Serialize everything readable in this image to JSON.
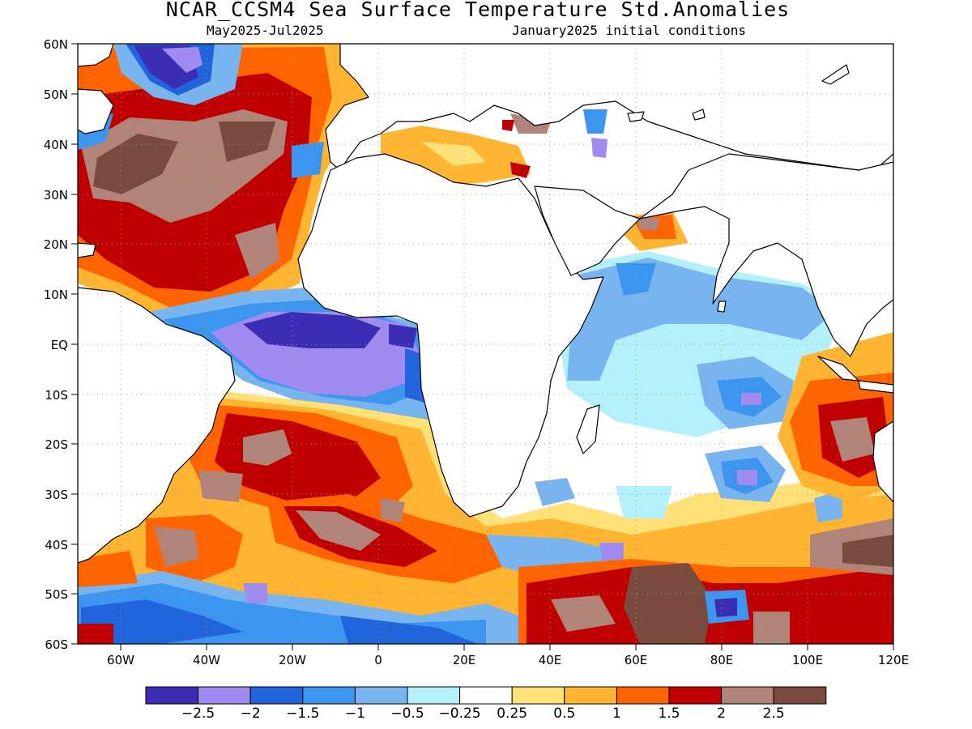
{
  "header": {
    "title": "NCAR_CCSM4 Sea Surface Temperature Std.Anomalies",
    "period": "May2025-Jul2025",
    "init": "January2025 initial conditions"
  },
  "map": {
    "lat_labels": [
      "60N",
      "50N",
      "40N",
      "30N",
      "20N",
      "10N",
      "EQ",
      "10S",
      "20S",
      "30S",
      "40S",
      "50S",
      "60S"
    ],
    "lon_labels": [
      "60W",
      "40W",
      "20W",
      "0",
      "20E",
      "40E",
      "60E",
      "80E",
      "100E",
      "120E"
    ],
    "lat_range": [
      -60,
      60
    ],
    "lon_range": [
      -70,
      120
    ],
    "grid": "dotted",
    "land_color": "#ffffff",
    "coastline_color": "#000000"
  },
  "colorbar": {
    "colors": [
      "#3c2eb4",
      "#a08cf0",
      "#2264dc",
      "#3c96f0",
      "#78b4f0",
      "#b4f0fa",
      "#ffffff",
      "#ffe178",
      "#ffb432",
      "#ff6400",
      "#c00000",
      "#b08478",
      "#7a4a3e"
    ],
    "labels": [
      "-2.5",
      "-2",
      "-1.5",
      "-1",
      "-0.5",
      "-0.25",
      "0.25",
      "0.5",
      "1",
      "1.5",
      "2",
      "2.5"
    ]
  }
}
